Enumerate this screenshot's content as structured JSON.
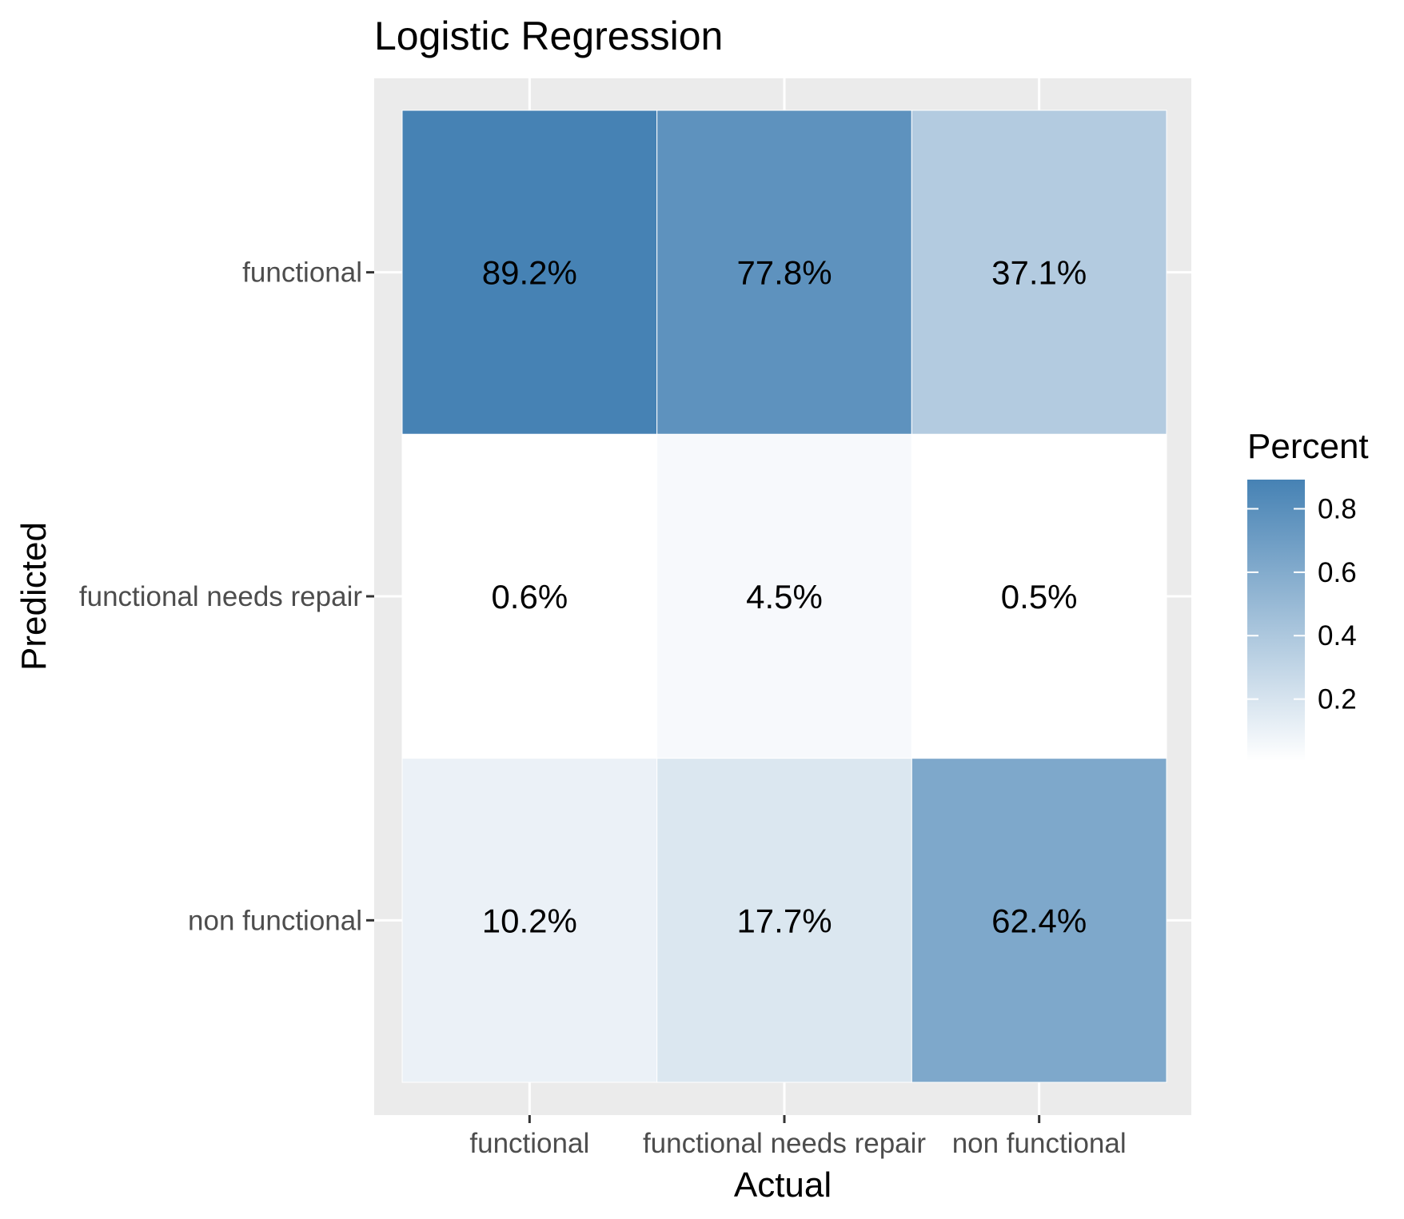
{
  "chart_data": {
    "type": "heatmap",
    "title": "Logistic Regression",
    "xlabel": "Actual",
    "ylabel": "Predicted",
    "x_categories": [
      "functional",
      "functional needs repair",
      "non functional"
    ],
    "y_categories": [
      "functional",
      "functional needs repair",
      "non functional"
    ],
    "cells": [
      {
        "actual": "functional",
        "predicted": "functional",
        "value": 0.892,
        "label": "89.2%"
      },
      {
        "actual": "functional needs repair",
        "predicted": "functional",
        "value": 0.778,
        "label": "77.8%"
      },
      {
        "actual": "non functional",
        "predicted": "functional",
        "value": 0.371,
        "label": "37.1%"
      },
      {
        "actual": "functional",
        "predicted": "functional needs repair",
        "value": 0.006,
        "label": "0.6%"
      },
      {
        "actual": "functional needs repair",
        "predicted": "functional needs repair",
        "value": 0.045,
        "label": "4.5%"
      },
      {
        "actual": "non functional",
        "predicted": "functional needs repair",
        "value": 0.005,
        "label": "0.5%"
      },
      {
        "actual": "functional",
        "predicted": "non functional",
        "value": 0.102,
        "label": "10.2%"
      },
      {
        "actual": "functional needs repair",
        "predicted": "non functional",
        "value": 0.177,
        "label": "17.7%"
      },
      {
        "actual": "non functional",
        "predicted": "non functional",
        "value": 0.624,
        "label": "62.4%"
      }
    ],
    "legend": {
      "title": "Percent",
      "ticks": [
        0.2,
        0.4,
        0.6,
        0.8
      ],
      "tick_labels": [
        "0.2",
        "0.4",
        "0.6",
        "0.8"
      ],
      "low_color": "#ffffff",
      "high_color": "#4682b4",
      "range": [
        0.005,
        0.892
      ],
      "placement": "right"
    },
    "panel_background": "#ebebeb",
    "grid": true
  }
}
